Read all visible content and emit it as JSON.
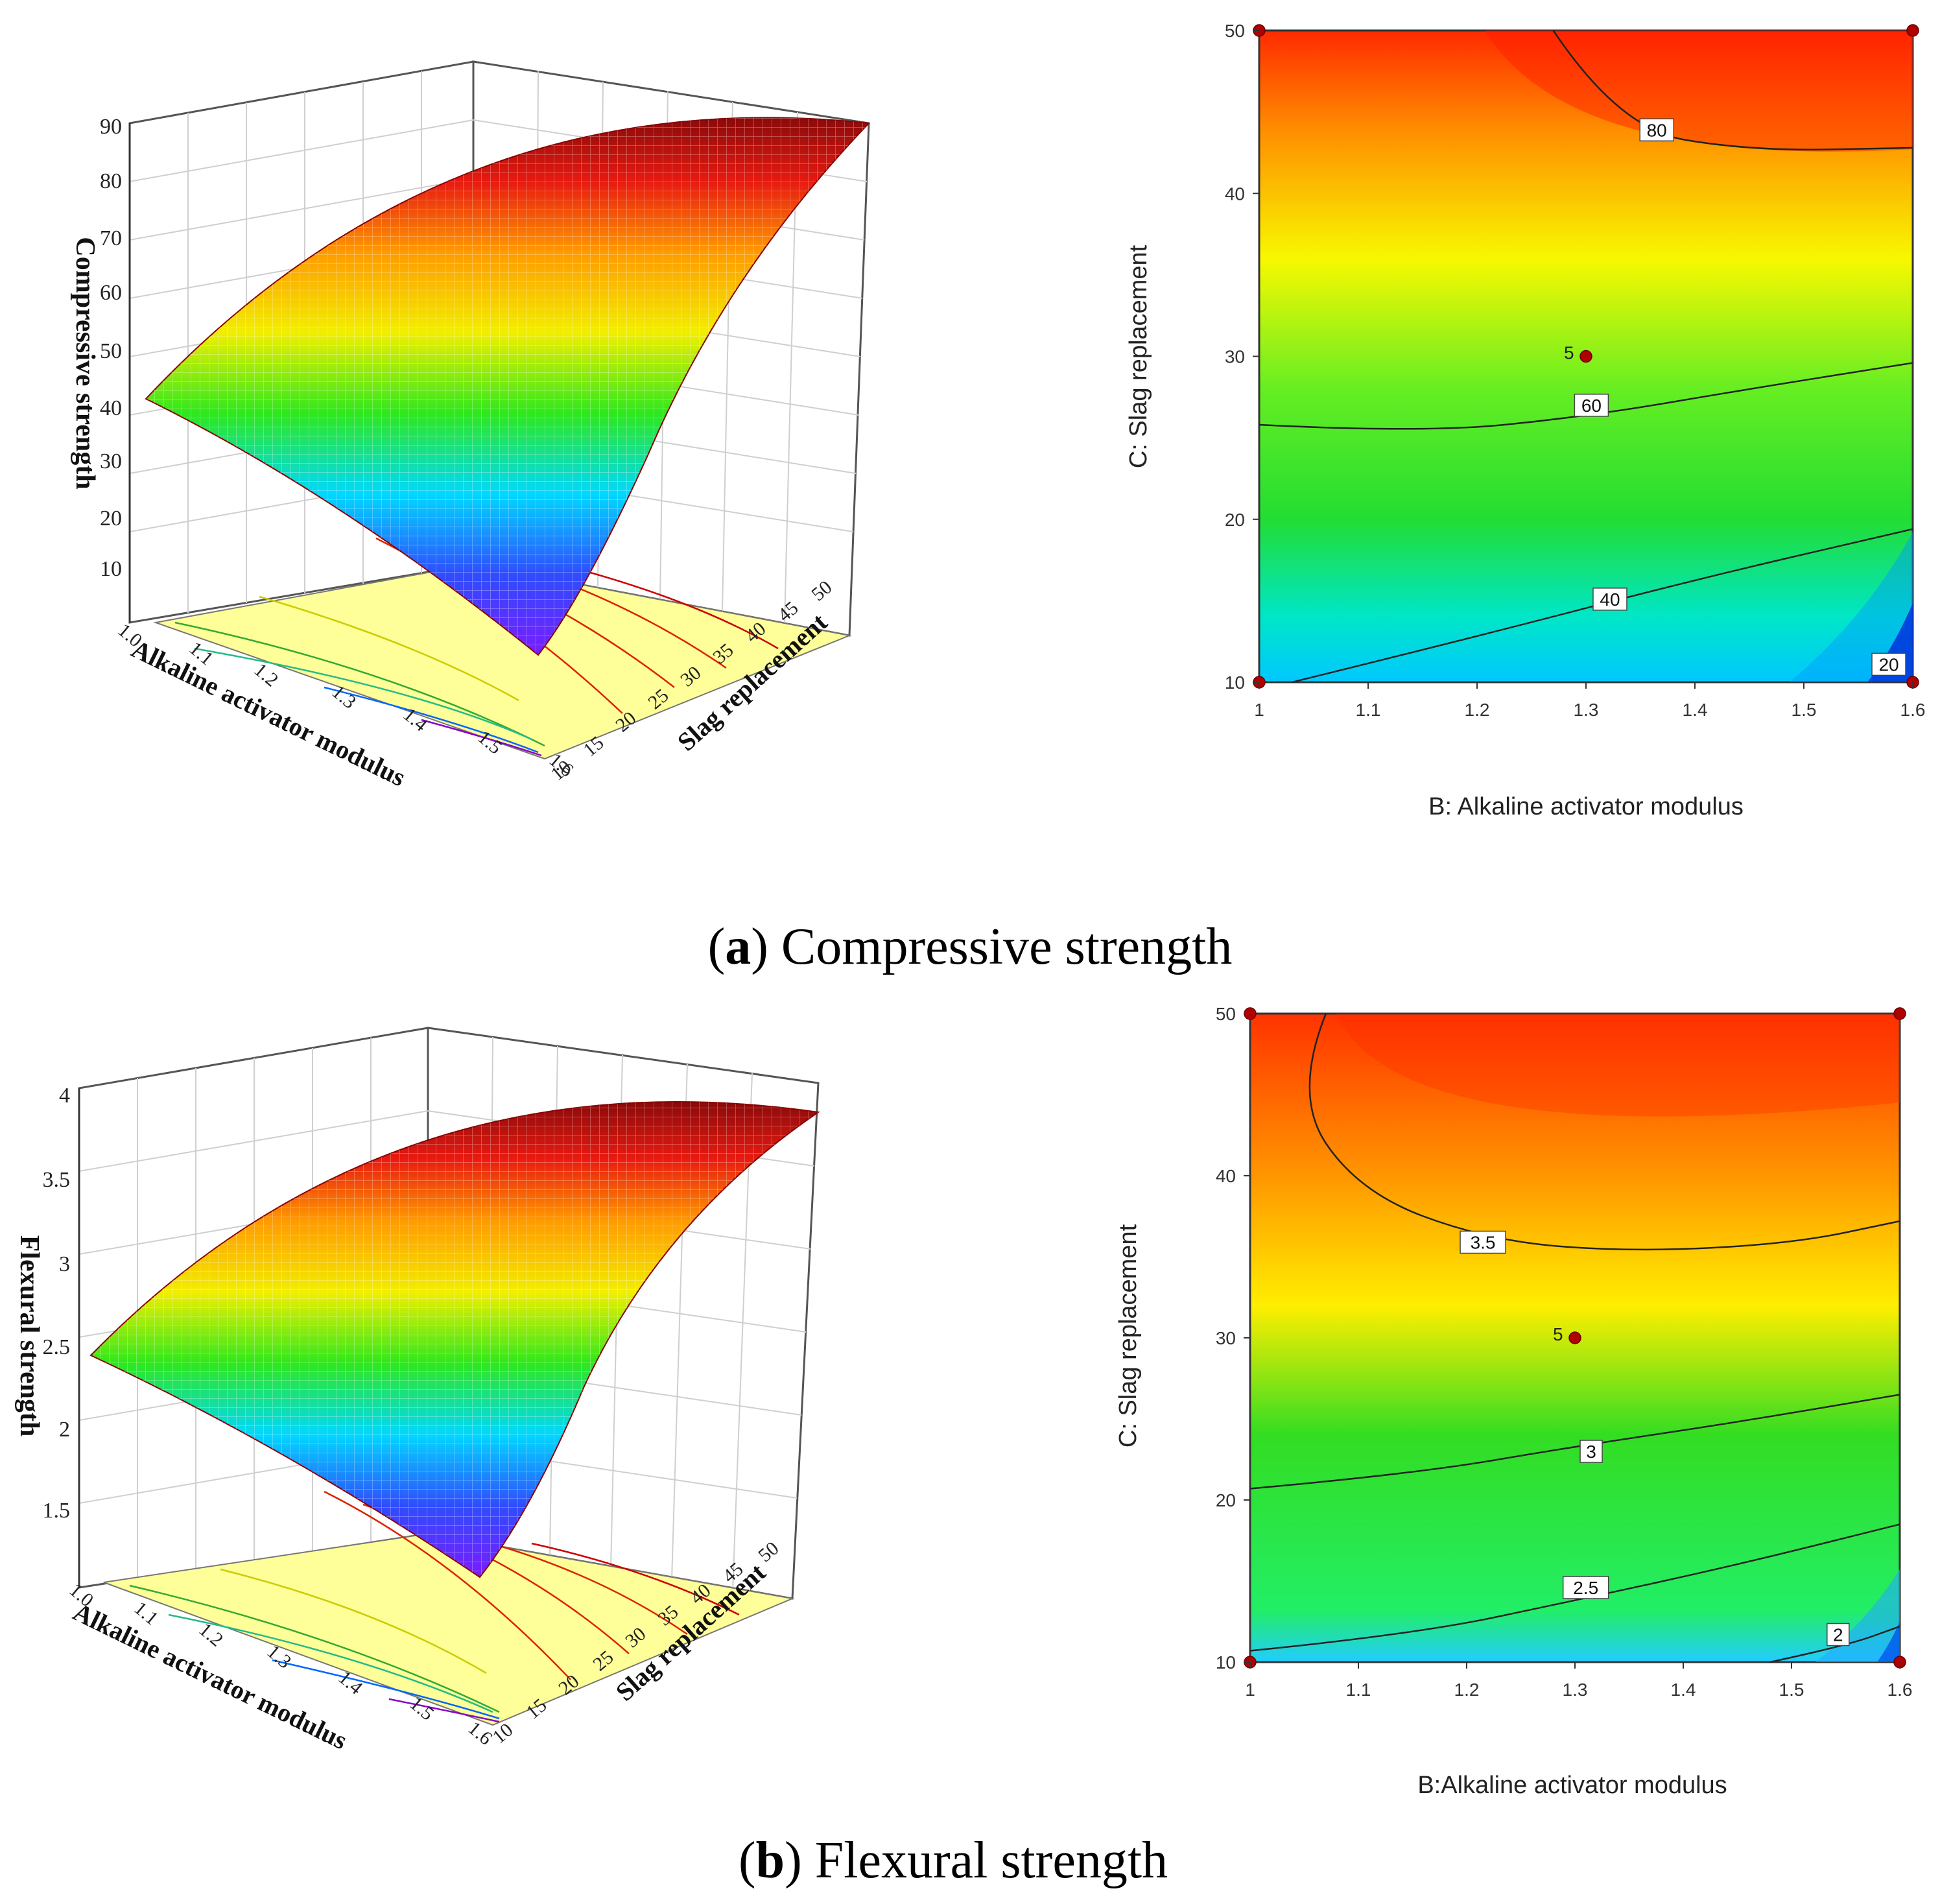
{
  "figure": {
    "panel_a": {
      "letter": "a",
      "caption": "Compressive strength"
    },
    "panel_b": {
      "letter": "b",
      "caption": "Flexural strength"
    }
  },
  "chart_data": [
    {
      "id": "a-surface",
      "type": "surface3d",
      "zlabel": "Compressive strength",
      "xlabel": "Alkaline activator modulus",
      "ylabel": "Slag replacement",
      "x_ticks": [
        "1.0",
        "1.1",
        "1.2",
        "1.3",
        "1.4",
        "1.5",
        "1.6"
      ],
      "y_ticks": [
        "10",
        "15",
        "20",
        "25",
        "30",
        "35",
        "40",
        "45",
        "50"
      ],
      "z_ticks": [
        "10",
        "20",
        "30",
        "40",
        "50",
        "60",
        "70",
        "80",
        "90"
      ],
      "xlim": [
        1.0,
        1.6
      ],
      "ylim": [
        10,
        50
      ],
      "zlim": [
        0,
        90
      ],
      "corner_values": {
        "x1.0_y10": 40,
        "x1.6_y10": 18,
        "x1.0_y50": 78,
        "x1.6_y50": 88
      }
    },
    {
      "id": "a-contour",
      "type": "contour",
      "xlabel": "B: Alkaline activator modulus",
      "ylabel": "C: Slag replacement",
      "x_ticks": [
        "1",
        "1.1",
        "1.2",
        "1.3",
        "1.4",
        "1.5",
        "1.6"
      ],
      "y_ticks": [
        "10",
        "20",
        "30",
        "40",
        "50"
      ],
      "xlim": [
        1.0,
        1.6
      ],
      "ylim": [
        10,
        50
      ],
      "contours": [
        {
          "level": "80",
          "points": [
            [
              1.27,
              50
            ],
            [
              1.33,
              44
            ],
            [
              1.45,
              42.6
            ],
            [
              1.6,
              42.8
            ]
          ],
          "label_at": [
            1.365,
            43.9
          ]
        },
        {
          "level": "60",
          "points": [
            [
              1.0,
              25.8
            ],
            [
              1.15,
              25.3
            ],
            [
              1.3,
              26.3
            ],
            [
              1.45,
              28.0
            ],
            [
              1.6,
              29.6
            ]
          ],
          "label_at": [
            1.305,
            27.0
          ]
        },
        {
          "level": "40",
          "points": [
            [
              1.03,
              10
            ],
            [
              1.2,
              12.8
            ],
            [
              1.4,
              16.3
            ],
            [
              1.6,
              19.4
            ]
          ],
          "label_at": [
            1.322,
            15.1
          ]
        },
        {
          "level": "20",
          "points": [],
          "label_at": [
            1.578,
            11.1
          ]
        }
      ],
      "design_points": [
        [
          1.0,
          10
        ],
        [
          1.6,
          10
        ],
        [
          1.0,
          50
        ],
        [
          1.6,
          50
        ],
        [
          1.3,
          30
        ]
      ],
      "center_label": "5"
    },
    {
      "id": "b-surface",
      "type": "surface3d",
      "zlabel": "Flexural strength",
      "xlabel": "Alkaline activator modulus",
      "ylabel": "Slag replacement",
      "x_ticks": [
        "1.0",
        "1.1",
        "1.2",
        "1.3",
        "1.4",
        "1.5",
        "1.6"
      ],
      "y_ticks": [
        "10",
        "15",
        "20",
        "25",
        "30",
        "35",
        "40",
        "45",
        "50"
      ],
      "z_ticks": [
        "1.5",
        "2",
        "2.5",
        "3",
        "3.5",
        "4"
      ],
      "xlim": [
        1.0,
        1.6
      ],
      "ylim": [
        10,
        50
      ],
      "zlim": [
        1.0,
        4.0
      ],
      "corner_values": {
        "x1.0_y10": 2.5,
        "x1.6_y10": 1.85,
        "x1.0_y50": 3.6,
        "x1.6_y50": 3.85
      }
    },
    {
      "id": "b-contour",
      "type": "contour",
      "xlabel": "B:Alkaline activator modulus",
      "ylabel": "C: Slag replacement",
      "x_ticks": [
        "1",
        "1.1",
        "1.2",
        "1.3",
        "1.4",
        "1.5",
        "1.6"
      ],
      "y_ticks": [
        "10",
        "20",
        "30",
        "40",
        "50"
      ],
      "xlim": [
        1.0,
        1.6
      ],
      "ylim": [
        10,
        50
      ],
      "contours": [
        {
          "level": "3.5",
          "points": [
            [
              1.07,
              50
            ],
            [
              1.04,
              45
            ],
            [
              1.1,
              39
            ],
            [
              1.22,
              36
            ],
            [
              1.35,
              35.3
            ],
            [
              1.5,
              35.8
            ],
            [
              1.6,
              37.2
            ]
          ],
          "label_at": [
            1.215,
            35.9
          ]
        },
        {
          "level": "3",
          "points": [
            [
              1.0,
              20.7
            ],
            [
              1.15,
              21.6
            ],
            [
              1.3,
              23.3
            ],
            [
              1.45,
              24.8
            ],
            [
              1.6,
              26.5
            ]
          ],
          "label_at": [
            1.315,
            23.0
          ]
        },
        {
          "level": "2.5",
          "points": [
            [
              1.0,
              10.7
            ],
            [
              1.15,
              11.7
            ],
            [
              1.3,
              13.8
            ],
            [
              1.45,
              16.0
            ],
            [
              1.6,
              18.5
            ]
          ],
          "label_at": [
            1.31,
            14.6
          ]
        },
        {
          "level": "2",
          "points": [
            [
              1.48,
              10
            ],
            [
              1.55,
              11
            ],
            [
              1.6,
              12.2
            ]
          ],
          "label_at": [
            1.543,
            11.7
          ]
        }
      ],
      "design_points": [
        [
          1.0,
          10
        ],
        [
          1.6,
          10
        ],
        [
          1.0,
          50
        ],
        [
          1.6,
          50
        ],
        [
          1.3,
          30
        ]
      ],
      "center_label": "5"
    }
  ]
}
